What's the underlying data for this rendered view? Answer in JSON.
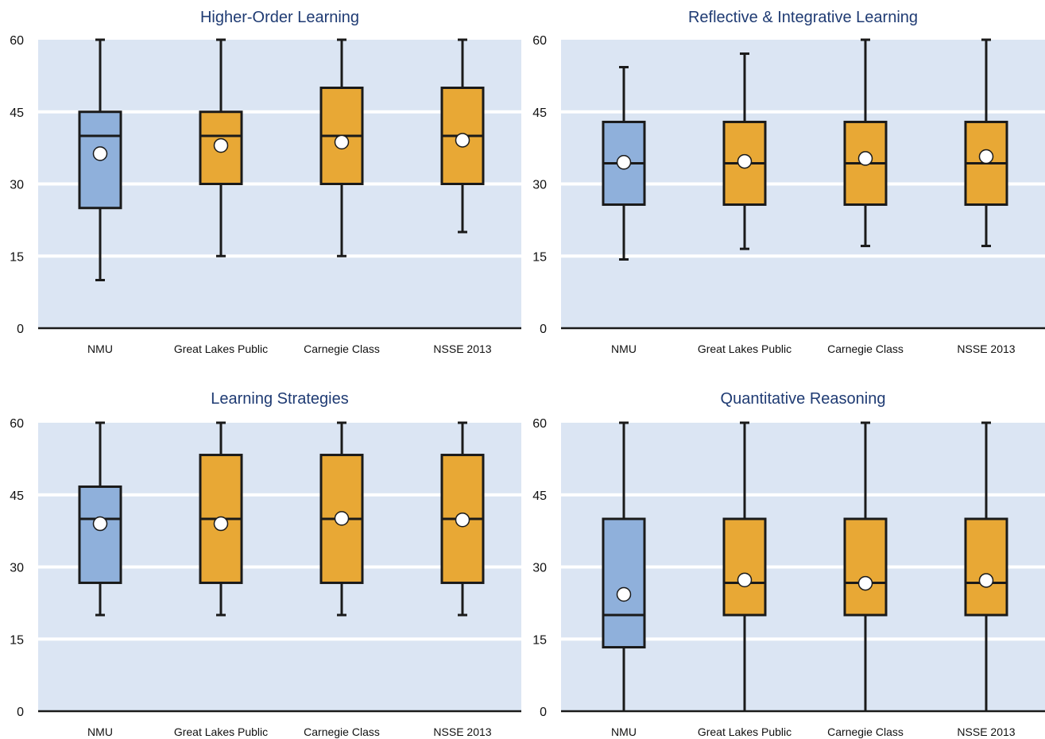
{
  "colors": {
    "plot_background": "#dbe5f3",
    "gridline": "#ffffff",
    "institution_box": "#8fb0db",
    "comparison_box": "#e8a835",
    "outline": "#1a1a1a",
    "mean_marker": "#ffffff",
    "title": "#1f3b73"
  },
  "chart_data": [
    {
      "type": "box",
      "title": "Higher-Order Learning",
      "xlabel": "",
      "ylabel": "",
      "ylim": [
        0,
        60
      ],
      "yticks": [
        "0",
        "15",
        "30",
        "45",
        "60"
      ],
      "grid": true,
      "categories": [
        "NMU",
        "Great Lakes Public",
        "Carnegie Class",
        "NSSE 2013"
      ],
      "series": [
        {
          "whisker_low": 10,
          "q1": 25,
          "median": 40,
          "q3": 45,
          "whisker_high": 60,
          "mean": 36.3,
          "highlight": true
        },
        {
          "whisker_low": 15,
          "q1": 30,
          "median": 40,
          "q3": 45,
          "whisker_high": 60,
          "mean": 38.0,
          "highlight": false
        },
        {
          "whisker_low": 15,
          "q1": 30,
          "median": 40,
          "q3": 50,
          "whisker_high": 60,
          "mean": 38.7,
          "highlight": false
        },
        {
          "whisker_low": 20,
          "q1": 30,
          "median": 40,
          "q3": 50,
          "whisker_high": 60,
          "mean": 39.1,
          "highlight": false
        }
      ]
    },
    {
      "type": "box",
      "title": "Reflective & Integrative Learning",
      "xlabel": "",
      "ylabel": "",
      "ylim": [
        0,
        60
      ],
      "yticks": [
        "0",
        "15",
        "30",
        "45",
        "60"
      ],
      "grid": true,
      "categories": [
        "NMU",
        "Great Lakes Public",
        "Carnegie Class",
        "NSSE 2013"
      ],
      "series": [
        {
          "whisker_low": 14.3,
          "q1": 25.7,
          "median": 34.3,
          "q3": 42.9,
          "whisker_high": 54.3,
          "mean": 34.5,
          "highlight": true
        },
        {
          "whisker_low": 16.5,
          "q1": 25.7,
          "median": 34.3,
          "q3": 42.9,
          "whisker_high": 57.1,
          "mean": 34.7,
          "highlight": false
        },
        {
          "whisker_low": 17.1,
          "q1": 25.7,
          "median": 34.3,
          "q3": 42.9,
          "whisker_high": 60,
          "mean": 35.3,
          "highlight": false
        },
        {
          "whisker_low": 17.1,
          "q1": 25.7,
          "median": 34.3,
          "q3": 42.9,
          "whisker_high": 60,
          "mean": 35.7,
          "highlight": false
        }
      ]
    },
    {
      "type": "box",
      "title": "Learning Strategies",
      "xlabel": "",
      "ylabel": "",
      "ylim": [
        0,
        60
      ],
      "yticks": [
        "0",
        "15",
        "30",
        "45",
        "60"
      ],
      "grid": true,
      "categories": [
        "NMU",
        "Great Lakes Public",
        "Carnegie Class",
        "NSSE 2013"
      ],
      "series": [
        {
          "whisker_low": 20,
          "q1": 26.7,
          "median": 40,
          "q3": 46.7,
          "whisker_high": 60,
          "mean": 39.0,
          "highlight": true
        },
        {
          "whisker_low": 20,
          "q1": 26.7,
          "median": 40,
          "q3": 53.3,
          "whisker_high": 60,
          "mean": 39.0,
          "highlight": false
        },
        {
          "whisker_low": 20,
          "q1": 26.7,
          "median": 40,
          "q3": 53.3,
          "whisker_high": 60,
          "mean": 40.1,
          "highlight": false
        },
        {
          "whisker_low": 20,
          "q1": 26.7,
          "median": 40,
          "q3": 53.3,
          "whisker_high": 60,
          "mean": 39.8,
          "highlight": false
        }
      ]
    },
    {
      "type": "box",
      "title": "Quantitative Reasoning",
      "xlabel": "",
      "ylabel": "",
      "ylim": [
        0,
        60
      ],
      "yticks": [
        "0",
        "15",
        "30",
        "45",
        "60"
      ],
      "grid": true,
      "categories": [
        "NMU",
        "Great Lakes Public",
        "Carnegie Class",
        "NSSE 2013"
      ],
      "series": [
        {
          "whisker_low": 0,
          "q1": 13.3,
          "median": 20,
          "q3": 40,
          "whisker_high": 60,
          "mean": 24.3,
          "highlight": true
        },
        {
          "whisker_low": 0,
          "q1": 20,
          "median": 26.7,
          "q3": 40,
          "whisker_high": 60,
          "mean": 27.3,
          "highlight": false
        },
        {
          "whisker_low": 0,
          "q1": 20,
          "median": 26.7,
          "q3": 40,
          "whisker_high": 60,
          "mean": 26.6,
          "highlight": false
        },
        {
          "whisker_low": 0,
          "q1": 20,
          "median": 26.7,
          "q3": 40,
          "whisker_high": 60,
          "mean": 27.2,
          "highlight": false
        }
      ]
    }
  ]
}
